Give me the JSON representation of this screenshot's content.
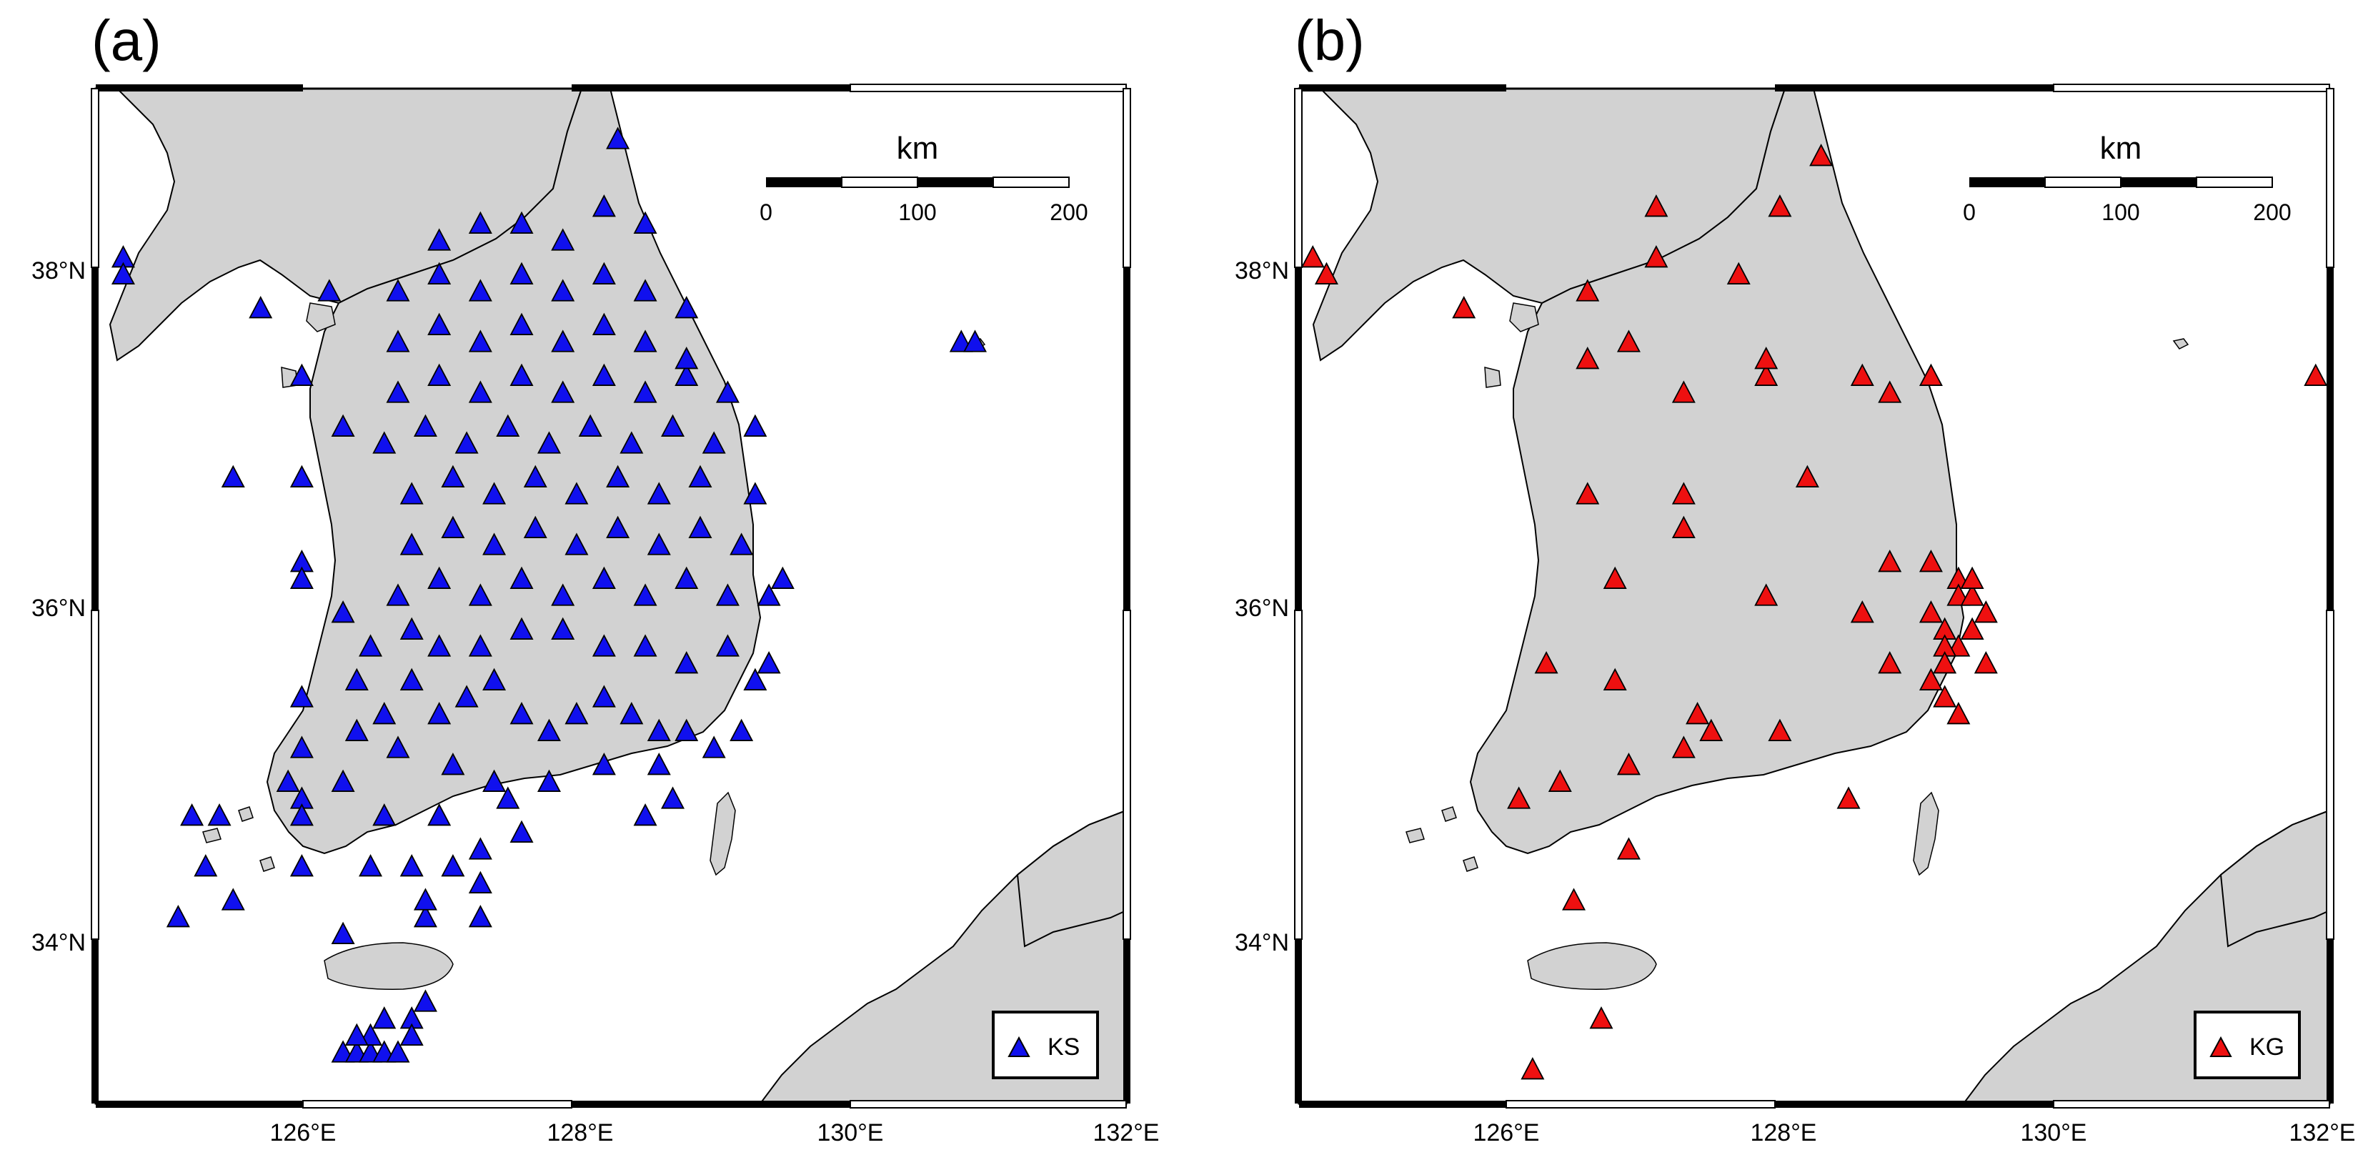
{
  "figure": {
    "panels": [
      {
        "id": "a",
        "label": "(a)",
        "legend": {
          "symbol": "blue-triangle",
          "text": "KS"
        },
        "marker_color": "#1010ee",
        "scale_bar": {
          "unit": "km",
          "ticks": [
            "0",
            "100",
            "200"
          ]
        },
        "lat_ticks": [
          "34°N",
          "36°N",
          "38°N"
        ],
        "lon_ticks": [
          "126°E",
          "128°E",
          "130°E",
          "132°E"
        ]
      },
      {
        "id": "b",
        "label": "(b)",
        "legend": {
          "symbol": "red-triangle",
          "text": "KG"
        },
        "marker_color": "#ee1010",
        "scale_bar": {
          "unit": "km",
          "ticks": [
            "0",
            "100",
            "200"
          ]
        },
        "lat_ticks": [
          "34°N",
          "36°N",
          "38°N"
        ],
        "lon_ticks": [
          "126°E",
          "128°E",
          "130°E",
          "132°E"
        ]
      }
    ]
  },
  "chart_data": [
    {
      "type": "scatter",
      "map_extent": {
        "lon": [
          124.5,
          132.0
        ],
        "lat": [
          33.0,
          39.0
        ]
      },
      "series": [
        {
          "name": "KS",
          "points": [
            [
              124.7,
              38.0
            ],
            [
              124.7,
              37.9
            ],
            [
              125.7,
              37.7
            ],
            [
              126.2,
              37.8
            ],
            [
              126.0,
              37.3
            ],
            [
              126.3,
              37.0
            ],
            [
              125.5,
              36.7
            ],
            [
              126.0,
              36.7
            ],
            [
              126.0,
              36.2
            ],
            [
              126.0,
              36.1
            ],
            [
              126.3,
              35.9
            ],
            [
              126.0,
              35.4
            ],
            [
              126.0,
              35.1
            ],
            [
              125.9,
              34.9
            ],
            [
              126.0,
              34.8
            ],
            [
              126.0,
              34.7
            ],
            [
              126.0,
              34.4
            ],
            [
              125.2,
              34.7
            ],
            [
              125.4,
              34.7
            ],
            [
              125.3,
              34.4
            ],
            [
              125.5,
              34.2
            ],
            [
              125.1,
              34.1
            ],
            [
              126.3,
              34.0
            ],
            [
              126.9,
              34.1
            ],
            [
              127.3,
              34.1
            ],
            [
              127.3,
              34.3
            ],
            [
              126.9,
              34.2
            ],
            [
              126.5,
              34.4
            ],
            [
              126.8,
              34.4
            ],
            [
              127.1,
              34.4
            ],
            [
              127.3,
              34.5
            ],
            [
              127.6,
              34.6
            ],
            [
              126.3,
              33.3
            ],
            [
              126.4,
              33.3
            ],
            [
              126.5,
              33.3
            ],
            [
              126.6,
              33.3
            ],
            [
              126.7,
              33.3
            ],
            [
              126.5,
              33.4
            ],
            [
              126.6,
              33.5
            ],
            [
              126.8,
              33.5
            ],
            [
              126.9,
              33.6
            ],
            [
              126.8,
              33.4
            ],
            [
              126.4,
              33.4
            ],
            [
              128.5,
              34.7
            ],
            [
              128.7,
              34.8
            ],
            [
              130.8,
              37.5
            ],
            [
              130.9,
              37.5
            ],
            [
              126.4,
              35.5
            ],
            [
              126.6,
              35.3
            ],
            [
              126.8,
              35.5
            ],
            [
              127.0,
              35.3
            ],
            [
              127.2,
              35.4
            ],
            [
              127.4,
              35.5
            ],
            [
              127.6,
              35.3
            ],
            [
              127.8,
              35.2
            ],
            [
              128.0,
              35.3
            ],
            [
              128.2,
              35.4
            ],
            [
              128.4,
              35.3
            ],
            [
              128.6,
              35.2
            ],
            [
              128.8,
              35.2
            ],
            [
              129.0,
              35.1
            ],
            [
              129.2,
              35.2
            ],
            [
              126.5,
              35.7
            ],
            [
              126.8,
              35.8
            ],
            [
              127.0,
              35.7
            ],
            [
              127.3,
              35.7
            ],
            [
              127.6,
              35.8
            ],
            [
              127.9,
              35.8
            ],
            [
              128.2,
              35.7
            ],
            [
              128.5,
              35.7
            ],
            [
              128.8,
              35.6
            ],
            [
              129.1,
              35.7
            ],
            [
              129.4,
              35.6
            ],
            [
              126.7,
              36.0
            ],
            [
              127.0,
              36.1
            ],
            [
              127.3,
              36.0
            ],
            [
              127.6,
              36.1
            ],
            [
              127.9,
              36.0
            ],
            [
              128.2,
              36.1
            ],
            [
              128.5,
              36.0
            ],
            [
              128.8,
              36.1
            ],
            [
              129.1,
              36.0
            ],
            [
              129.4,
              36.0
            ],
            [
              126.8,
              36.3
            ],
            [
              127.1,
              36.4
            ],
            [
              127.4,
              36.3
            ],
            [
              127.7,
              36.4
            ],
            [
              128.0,
              36.3
            ],
            [
              128.3,
              36.4
            ],
            [
              128.6,
              36.3
            ],
            [
              128.9,
              36.4
            ],
            [
              129.2,
              36.3
            ],
            [
              126.8,
              36.6
            ],
            [
              127.1,
              36.7
            ],
            [
              127.4,
              36.6
            ],
            [
              127.7,
              36.7
            ],
            [
              128.0,
              36.6
            ],
            [
              128.3,
              36.7
            ],
            [
              128.6,
              36.6
            ],
            [
              128.9,
              36.7
            ],
            [
              129.3,
              36.6
            ],
            [
              126.6,
              36.9
            ],
            [
              126.9,
              37.0
            ],
            [
              127.2,
              36.9
            ],
            [
              127.5,
              37.0
            ],
            [
              127.8,
              36.9
            ],
            [
              128.1,
              37.0
            ],
            [
              128.4,
              36.9
            ],
            [
              128.7,
              37.0
            ],
            [
              129.0,
              36.9
            ],
            [
              129.3,
              37.0
            ],
            [
              126.7,
              37.2
            ],
            [
              127.0,
              37.3
            ],
            [
              127.3,
              37.2
            ],
            [
              127.6,
              37.3
            ],
            [
              127.9,
              37.2
            ],
            [
              128.2,
              37.3
            ],
            [
              128.5,
              37.2
            ],
            [
              128.8,
              37.3
            ],
            [
              129.1,
              37.2
            ],
            [
              126.7,
              37.5
            ],
            [
              127.0,
              37.6
            ],
            [
              127.3,
              37.5
            ],
            [
              127.6,
              37.6
            ],
            [
              127.9,
              37.5
            ],
            [
              128.2,
              37.6
            ],
            [
              128.5,
              37.5
            ],
            [
              128.8,
              37.4
            ],
            [
              126.7,
              37.8
            ],
            [
              127.0,
              37.9
            ],
            [
              127.3,
              37.8
            ],
            [
              127.6,
              37.9
            ],
            [
              127.9,
              37.8
            ],
            [
              128.2,
              37.9
            ],
            [
              128.5,
              37.8
            ],
            [
              128.8,
              37.7
            ],
            [
              127.0,
              38.1
            ],
            [
              127.3,
              38.2
            ],
            [
              127.6,
              38.2
            ],
            [
              127.9,
              38.1
            ],
            [
              128.2,
              38.3
            ],
            [
              128.5,
              38.2
            ],
            [
              128.3,
              38.7
            ],
            [
              126.4,
              35.2
            ],
            [
              126.7,
              35.1
            ],
            [
              127.1,
              35.0
            ],
            [
              127.4,
              34.9
            ],
            [
              127.8,
              34.9
            ],
            [
              128.2,
              35.0
            ],
            [
              128.6,
              35.0
            ],
            [
              129.3,
              35.5
            ],
            [
              129.5,
              36.1
            ],
            [
              126.3,
              34.9
            ],
            [
              126.6,
              34.7
            ],
            [
              127.0,
              34.7
            ],
            [
              127.5,
              34.8
            ]
          ]
        }
      ]
    },
    {
      "type": "scatter",
      "map_extent": {
        "lon": [
          124.5,
          132.0
        ],
        "lat": [
          33.0,
          39.0
        ]
      },
      "series": [
        {
          "name": "KG",
          "points": [
            [
              124.6,
              38.0
            ],
            [
              124.7,
              37.9
            ],
            [
              125.7,
              37.7
            ],
            [
              126.6,
              37.8
            ],
            [
              126.6,
              37.4
            ],
            [
              126.9,
              37.5
            ],
            [
              127.1,
              38.3
            ],
            [
              127.1,
              38.0
            ],
            [
              128.0,
              38.3
            ],
            [
              127.7,
              37.9
            ],
            [
              128.3,
              38.6
            ],
            [
              127.3,
              37.2
            ],
            [
              127.9,
              37.3
            ],
            [
              127.9,
              37.4
            ],
            [
              128.6,
              37.3
            ],
            [
              128.8,
              37.2
            ],
            [
              129.1,
              37.3
            ],
            [
              131.9,
              37.3
            ],
            [
              126.6,
              36.6
            ],
            [
              127.3,
              36.6
            ],
            [
              127.3,
              36.4
            ],
            [
              128.2,
              36.7
            ],
            [
              126.8,
              36.1
            ],
            [
              127.9,
              36.0
            ],
            [
              128.6,
              35.9
            ],
            [
              128.8,
              36.2
            ],
            [
              129.1,
              36.2
            ],
            [
              129.3,
              36.1
            ],
            [
              129.3,
              36.0
            ],
            [
              129.4,
              36.0
            ],
            [
              129.4,
              36.1
            ],
            [
              129.5,
              35.9
            ],
            [
              129.1,
              35.9
            ],
            [
              129.2,
              35.8
            ],
            [
              129.3,
              35.7
            ],
            [
              129.2,
              35.7
            ],
            [
              129.4,
              35.8
            ],
            [
              129.5,
              35.6
            ],
            [
              129.2,
              35.6
            ],
            [
              129.1,
              35.5
            ],
            [
              128.8,
              35.6
            ],
            [
              129.2,
              35.4
            ],
            [
              129.3,
              35.3
            ],
            [
              126.3,
              35.6
            ],
            [
              126.8,
              35.5
            ],
            [
              127.4,
              35.3
            ],
            [
              127.5,
              35.2
            ],
            [
              128.0,
              35.2
            ],
            [
              127.3,
              35.1
            ],
            [
              126.9,
              35.0
            ],
            [
              126.4,
              34.9
            ],
            [
              126.1,
              34.8
            ],
            [
              126.9,
              34.5
            ],
            [
              126.5,
              34.2
            ],
            [
              128.5,
              34.8
            ],
            [
              126.7,
              33.5
            ],
            [
              126.2,
              33.2
            ]
          ]
        }
      ]
    }
  ]
}
